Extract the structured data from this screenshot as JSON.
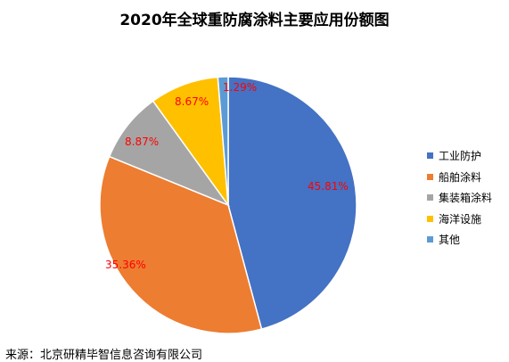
{
  "chart_data": {
    "type": "pie",
    "title": "2020年全球重防腐涂料主要应用份额图",
    "categories": [
      "工业防护",
      "船舶涂料",
      "集装箱涂料",
      "海洋设施",
      "其他"
    ],
    "values": [
      45.81,
      35.36,
      8.87,
      8.67,
      1.29
    ],
    "value_labels": [
      "45.81%",
      "35.36%",
      "8.87%",
      "8.67%",
      "1.29%"
    ],
    "colors": [
      "#4472C4",
      "#ED7D31",
      "#A5A5A5",
      "#FFC000",
      "#5B9BD5"
    ],
    "label_color": "#FF0000",
    "legend_position": "right"
  },
  "source": "来源：北京研精毕智信息咨询有限公司"
}
